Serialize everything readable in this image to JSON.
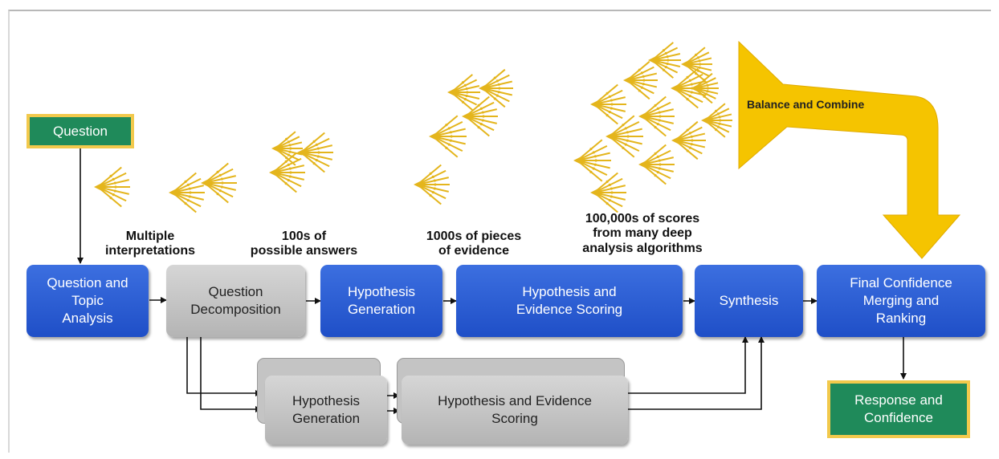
{
  "inputs": {
    "question": "Question",
    "response": "Response and\nConfidence"
  },
  "stages": {
    "topic_analysis": "Question and\nTopic\nAnalysis",
    "decomposition": "Question\nDecomposition",
    "hypothesis_generation": "Hypothesis\nGeneration",
    "evidence_scoring": "Hypothesis and\nEvidence Scoring",
    "synthesis": "Synthesis",
    "final_ranking": "Final Confidence\nMerging and\nRanking"
  },
  "parallel": {
    "hypothesis_generation": "Hypothesis\nGeneration",
    "evidence_scoring": "Hypothesis and Evidence\nScoring"
  },
  "annotations": {
    "interpretations": "Multiple\ninterpretations",
    "answers": "100s of\npossible answers",
    "evidence": "1000s of pieces\nof evidence",
    "scores": "100,000s of scores\nfrom many deep\nanalysis algorithms"
  },
  "balance_label": "Balance and Combine",
  "colors": {
    "stage_blue": "#2a5bd7",
    "stage_gray": "#c4c4c4",
    "terminal_green": "#1f8a5a",
    "terminal_border": "#f2c94c",
    "fan_gold": "#e4b51c",
    "arrow_yellow": "#f5c400"
  }
}
